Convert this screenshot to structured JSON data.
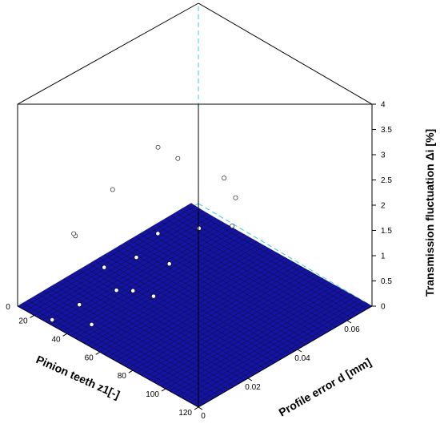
{
  "chart_data": {
    "type": "surface",
    "x_axis": {
      "label": "Pinion teeth z1[-]",
      "ticks": [
        20,
        40,
        60,
        80,
        100,
        120
      ],
      "range": [
        10,
        120
      ]
    },
    "y_axis": {
      "label": "Profile error d [mm]",
      "ticks": [
        0,
        0.02,
        0.04,
        0.06
      ],
      "range": [
        0,
        0.07
      ]
    },
    "z_axis": {
      "label": "Transmission fluctuation Δi [%]",
      "ticks": [
        0,
        0.5,
        1,
        1.5,
        2,
        2.5,
        3,
        3.5,
        4
      ],
      "range": [
        0,
        4
      ]
    },
    "z_zero_label": "0",
    "surface_color": "#1414a0",
    "mesh_color": "#000030",
    "guide_color": "#33ccee",
    "grid": false,
    "surface_model": "z = 5.7 * d / z1 (peak ≈ 3.9 % at z1 = 10, d = 0.07 mm)",
    "points": [
      {
        "z1": 12,
        "d": 0.022,
        "z": 0.8
      },
      {
        "z1": 17,
        "d": 0.018,
        "z": 1.05
      },
      {
        "z1": 15,
        "d": 0.035,
        "z": 1.4
      },
      {
        "z1": 20,
        "d": 0.05,
        "z": 1.9
      },
      {
        "z1": 28,
        "d": 0.002,
        "z": 0.0
      },
      {
        "z1": 20,
        "d": 0.058,
        "z": 1.45
      },
      {
        "z1": 31,
        "d": 0.021,
        "z": 0.55
      },
      {
        "z1": 37,
        "d": 0.007,
        "z": 0.32
      },
      {
        "z1": 37,
        "d": 0.03,
        "z": 0.6
      },
      {
        "z1": 35,
        "d": 0.04,
        "z": 0.75
      },
      {
        "z1": 46,
        "d": 0.006,
        "z": 0.12
      },
      {
        "z1": 43,
        "d": 0.018,
        "z": 0.4
      },
      {
        "z1": 47,
        "d": 0.022,
        "z": 0.35
      },
      {
        "z1": 48,
        "d": 0.036,
        "z": 0.5
      },
      {
        "z1": 45,
        "d": 0.05,
        "z": 0.75
      },
      {
        "z1": 55,
        "d": 0.025,
        "z": 0.3
      },
      {
        "z1": 50,
        "d": 0.06,
        "z": 0.6
      },
      {
        "z1": 30,
        "d": 0.07,
        "z": 0.9
      },
      {
        "z1": 40,
        "d": 0.068,
        "z": 0.75
      }
    ]
  }
}
